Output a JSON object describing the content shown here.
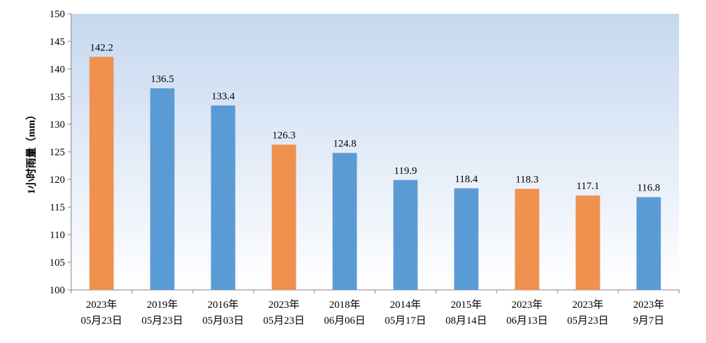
{
  "chart_data": {
    "type": "bar",
    "title": "",
    "xlabel": "",
    "ylabel": "1小时雨量（mm）",
    "ylim": [
      100,
      150
    ],
    "yticks": [
      100,
      105,
      110,
      115,
      120,
      125,
      130,
      135,
      140,
      145,
      150
    ],
    "grid": false,
    "legend": "none",
    "categories": [
      [
        "2023年",
        "05月23日"
      ],
      [
        "2019年",
        "05月23日"
      ],
      [
        "2016年",
        "05月03日"
      ],
      [
        "2023年",
        "05月23日"
      ],
      [
        "2018年",
        "06月06日"
      ],
      [
        "2014年",
        "05月17日"
      ],
      [
        "2015年",
        "08月14日"
      ],
      [
        "2023年",
        "06月13日"
      ],
      [
        "2023年",
        "05月23日"
      ],
      [
        "2023年",
        "9月7日"
      ]
    ],
    "values": [
      142.2,
      136.5,
      133.4,
      126.3,
      124.8,
      119.9,
      118.4,
      118.3,
      117.1,
      116.8
    ],
    "bar_colors": [
      "#F09150",
      "#5B9BD5",
      "#5B9BD5",
      "#F09150",
      "#5B9BD5",
      "#5B9BD5",
      "#5B9BD5",
      "#F09150",
      "#F09150",
      "#5B9BD5"
    ],
    "colors": {
      "orange": "#F09150",
      "blue": "#5B9BD5",
      "plot_bg_top": "#C6D8F0",
      "plot_bg_bottom": "#FFFFFF"
    }
  }
}
